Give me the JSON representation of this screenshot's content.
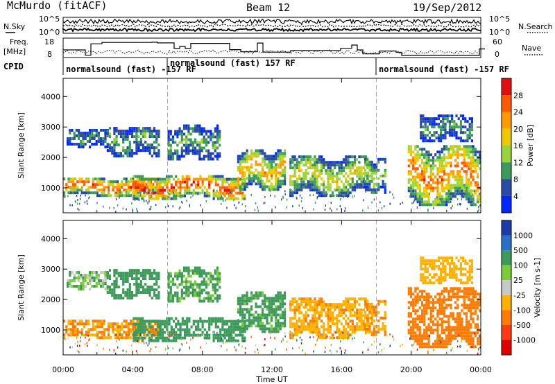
{
  "header": {
    "station": "McMurdo (fitACF)",
    "beam": "Beam 12",
    "date": "19/Sep/2012"
  },
  "noise_panel": {
    "left_label": "N.Sky",
    "right_label": "N.Search",
    "left_ticks": [
      "10^5",
      "10^0"
    ],
    "right_ticks": [
      "10^5",
      "10^0"
    ]
  },
  "freq_panel": {
    "left_label_1": "Freq.",
    "left_label_2": "[MHz]",
    "right_label": "Nave",
    "left_ticks": [
      "18",
      "8"
    ],
    "right_ticks": [
      "60",
      "0"
    ]
  },
  "cpid_panel": {
    "label": "CPID",
    "segments": [
      {
        "text": "normalsound (fast) -157 RF"
      },
      {
        "text": "normalsound (fast) 157 RF"
      },
      {
        "text": "normalsound (fast) -157 RF"
      }
    ]
  },
  "power_panel": {
    "ylabel": "Slant Range [km]",
    "cbar_label": "Power [dB]",
    "cbar_ticks": [
      "28",
      "24",
      "20",
      "16",
      "12",
      "8",
      "4"
    ],
    "cbar_colors": [
      "#e01010",
      "#ff5a00",
      "#ff9a00",
      "#f0c800",
      "#9bd43a",
      "#3c9a5a",
      "#2a4aa8",
      "#0028ff"
    ]
  },
  "velocity_panel": {
    "ylabel": "Slant Range [km]",
    "cbar_label": "Velocity [m s-1]",
    "cbar_ticks": [
      "1000",
      "500",
      "100",
      "25",
      "-25",
      "-100",
      "-500",
      "-1000"
    ],
    "cbar_colors": [
      "#1c3aa8",
      "#2a70c8",
      "#3c9a5a",
      "#7ccc3a",
      "#c8c8c8",
      "#ffb000",
      "#ff7a00",
      "#ff3a10",
      "#e00000"
    ]
  },
  "x_axis": {
    "label": "Time UT",
    "ticks": [
      "00:00",
      "04:00",
      "08:00",
      "12:00",
      "16:00",
      "20:00",
      "00:00"
    ]
  },
  "y_axis_ticks": [
    "1000",
    "2000",
    "3000",
    "4000"
  ],
  "chart_data": {
    "type": "heatmap",
    "title": "McMurdo (fitACF)",
    "subtitle": "Beam 12",
    "xlabel": "Time UT",
    "ylabel": "Slant Range [km]",
    "x_range_hours": [
      0,
      24
    ],
    "y_range_km": [
      180,
      4600
    ],
    "power_range_db": [
      0,
      32
    ],
    "velocity_range_ms": [
      -1000,
      1000
    ],
    "cpid_transitions_hours": [
      6,
      18
    ],
    "echo_bands": [
      {
        "t0": 0.0,
        "t1": 5.5,
        "r_lo": 700,
        "r_hi": 1300,
        "power_db": 28,
        "velocity_ms": -300
      },
      {
        "t0": 0.2,
        "t1": 2.5,
        "r_lo": 2300,
        "r_hi": 2900,
        "power_db": 10,
        "velocity_ms": 30
      },
      {
        "t0": 2.5,
        "t1": 5.5,
        "r_lo": 2000,
        "r_hi": 3000,
        "power_db": 12,
        "velocity_ms": 200
      },
      {
        "t0": 4.0,
        "t1": 10.5,
        "r_lo": 600,
        "r_hi": 1400,
        "power_db": 30,
        "velocity_ms": 150
      },
      {
        "t0": 6.0,
        "t1": 9.0,
        "r_lo": 1900,
        "r_hi": 3000,
        "power_db": 12,
        "velocity_ms": 100
      },
      {
        "t0": 10.0,
        "t1": 12.8,
        "r_lo": 900,
        "r_hi": 2200,
        "power_db": 22,
        "velocity_ms": 120
      },
      {
        "t0": 13.0,
        "t1": 17.5,
        "r_lo": 700,
        "r_hi": 2000,
        "power_db": 18,
        "velocity_ms": -250
      },
      {
        "t0": 17.3,
        "t1": 18.5,
        "r_lo": 800,
        "r_hi": 1900,
        "power_db": 16,
        "velocity_ms": -300
      },
      {
        "t0": 19.8,
        "t1": 24.0,
        "r_lo": 400,
        "r_hi": 2400,
        "power_db": 26,
        "velocity_ms": -400
      },
      {
        "t0": 20.5,
        "t1": 23.5,
        "r_lo": 2500,
        "r_hi": 3400,
        "power_db": 10,
        "velocity_ms": -150
      }
    ]
  }
}
